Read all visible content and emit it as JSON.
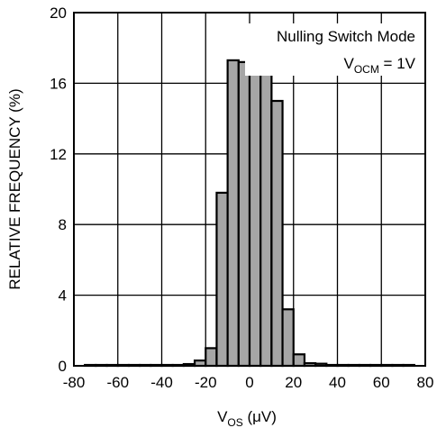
{
  "chart_data": {
    "type": "bar",
    "title": "",
    "xlabel": "V",
    "xlabel_sub": "OS",
    "xlabel_suffix": " (μV)",
    "ylabel": "RELATIVE FREQUENCY (%)",
    "xlim": [
      -80,
      80
    ],
    "ylim": [
      0,
      20
    ],
    "xticks": [
      -80,
      -60,
      -40,
      -20,
      0,
      20,
      40,
      60,
      80
    ],
    "yticks": [
      0,
      4,
      8,
      12,
      16,
      20
    ],
    "grid": true,
    "bin_width": 5,
    "bin_starts": [
      -75,
      -70,
      -65,
      -60,
      -55,
      -50,
      -45,
      -40,
      -35,
      -30,
      -25,
      -20,
      -15,
      -10,
      -5,
      0,
      5,
      10,
      15,
      20,
      25,
      30,
      35,
      40,
      45,
      50,
      55,
      60,
      65,
      70
    ],
    "values": [
      0.05,
      0.05,
      0.05,
      0.05,
      0.05,
      0.05,
      0.05,
      0.05,
      0.05,
      0.1,
      0.3,
      1.0,
      9.8,
      17.3,
      17.2,
      16.8,
      17.7,
      15.0,
      3.2,
      0.65,
      0.15,
      0.12,
      0.05,
      0.05,
      0.05,
      0.05,
      0.05,
      0.05,
      0.05,
      0.05
    ],
    "bar_color": "#a6a6a6",
    "annotations": {
      "line1": "Nulling Switch Mode",
      "line2_main": "V",
      "line2_sub": "OCM",
      "line2_rest": " = 1V"
    }
  }
}
